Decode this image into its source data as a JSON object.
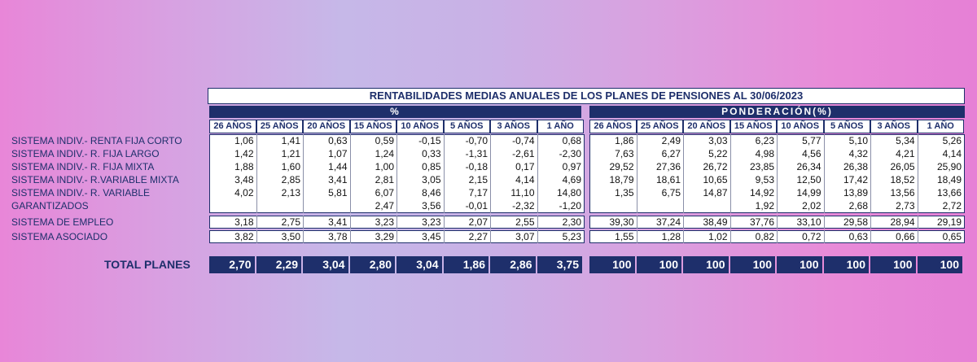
{
  "title": "RENTABILIDADES MEDIAS ANUALES DE LOS PLANES DE PENSIONES  AL  30/06/2023",
  "left_section": "%",
  "right_section": "PONDERACIÓN(%)",
  "columns": [
    "26 AÑOS",
    "25 AÑOS",
    "20 AÑOS",
    "15 AÑOS",
    "10 AÑOS",
    "5 AÑOS",
    "3 AÑOS",
    "1 AÑO"
  ],
  "rows": [
    {
      "label": "SISTEMA INDIV.- RENTA FIJA CORTO",
      "pct": [
        "1,06",
        "1,41",
        "0,63",
        "0,59",
        "-0,15",
        "-0,70",
        "-0,74",
        "0,68"
      ],
      "pond": [
        "1,86",
        "2,49",
        "3,03",
        "6,23",
        "5,77",
        "5,10",
        "5,34",
        "5,26"
      ]
    },
    {
      "label": "SISTEMA INDIV.- R. FIJA LARGO",
      "pct": [
        "1,42",
        "1,21",
        "1,07",
        "1,24",
        "0,33",
        "-1,31",
        "-2,61",
        "-2,30"
      ],
      "pond": [
        "7,63",
        "6,27",
        "5,22",
        "4,98",
        "4,56",
        "4,32",
        "4,21",
        "4,14"
      ]
    },
    {
      "label": "SISTEMA INDIV.- R. FIJA MIXTA",
      "pct": [
        "1,88",
        "1,60",
        "1,44",
        "1,00",
        "0,85",
        "-0,18",
        "0,17",
        "0,97"
      ],
      "pond": [
        "29,52",
        "27,36",
        "26,72",
        "23,85",
        "26,34",
        "26,38",
        "26,05",
        "25,90"
      ]
    },
    {
      "label": "SISTEMA INDIV.- R.VARIABLE MIXTA",
      "pct": [
        "3,48",
        "2,85",
        "3,41",
        "2,81",
        "3,05",
        "2,15",
        "4,14",
        "4,69"
      ],
      "pond": [
        "18,79",
        "18,61",
        "10,65",
        "9,53",
        "12,50",
        "17,42",
        "18,52",
        "18,49"
      ]
    },
    {
      "label": "SISTEMA INDIV.- R. VARIABLE",
      "pct": [
        "4,02",
        "2,13",
        "5,81",
        "6,07",
        "8,46",
        "7,17",
        "11,10",
        "14,80"
      ],
      "pond": [
        "1,35",
        "6,75",
        "14,87",
        "14,92",
        "14,99",
        "13,89",
        "13,56",
        "13,66"
      ]
    },
    {
      "label": "GARANTIZADOS",
      "pct": [
        "",
        "",
        "",
        "2,47",
        "3,56",
        "-0,01",
        "-2,32",
        "-1,20"
      ],
      "pond": [
        "",
        "",
        "",
        "1,92",
        "2,02",
        "2,68",
        "2,73",
        "2,72"
      ]
    }
  ],
  "empleo": {
    "label": "SISTEMA DE EMPLEO",
    "pct": [
      "3,18",
      "2,75",
      "3,41",
      "3,23",
      "3,23",
      "2,07",
      "2,55",
      "2,30"
    ],
    "pond": [
      "39,30",
      "37,24",
      "38,49",
      "37,76",
      "33,10",
      "29,58",
      "28,94",
      "29,19"
    ]
  },
  "asociado": {
    "label": "SISTEMA ASOCIADO",
    "pct": [
      "3,82",
      "3,50",
      "3,78",
      "3,29",
      "3,45",
      "2,27",
      "3,07",
      "5,23"
    ],
    "pond": [
      "1,55",
      "1,28",
      "1,02",
      "0,82",
      "0,72",
      "0,63",
      "0,66",
      "0,65"
    ]
  },
  "total": {
    "label": "TOTAL PLANES",
    "pct": [
      "2,70",
      "2,29",
      "3,04",
      "2,80",
      "3,04",
      "1,86",
      "2,86",
      "3,75"
    ],
    "pond": [
      "100",
      "100",
      "100",
      "100",
      "100",
      "100",
      "100",
      "100"
    ]
  }
}
